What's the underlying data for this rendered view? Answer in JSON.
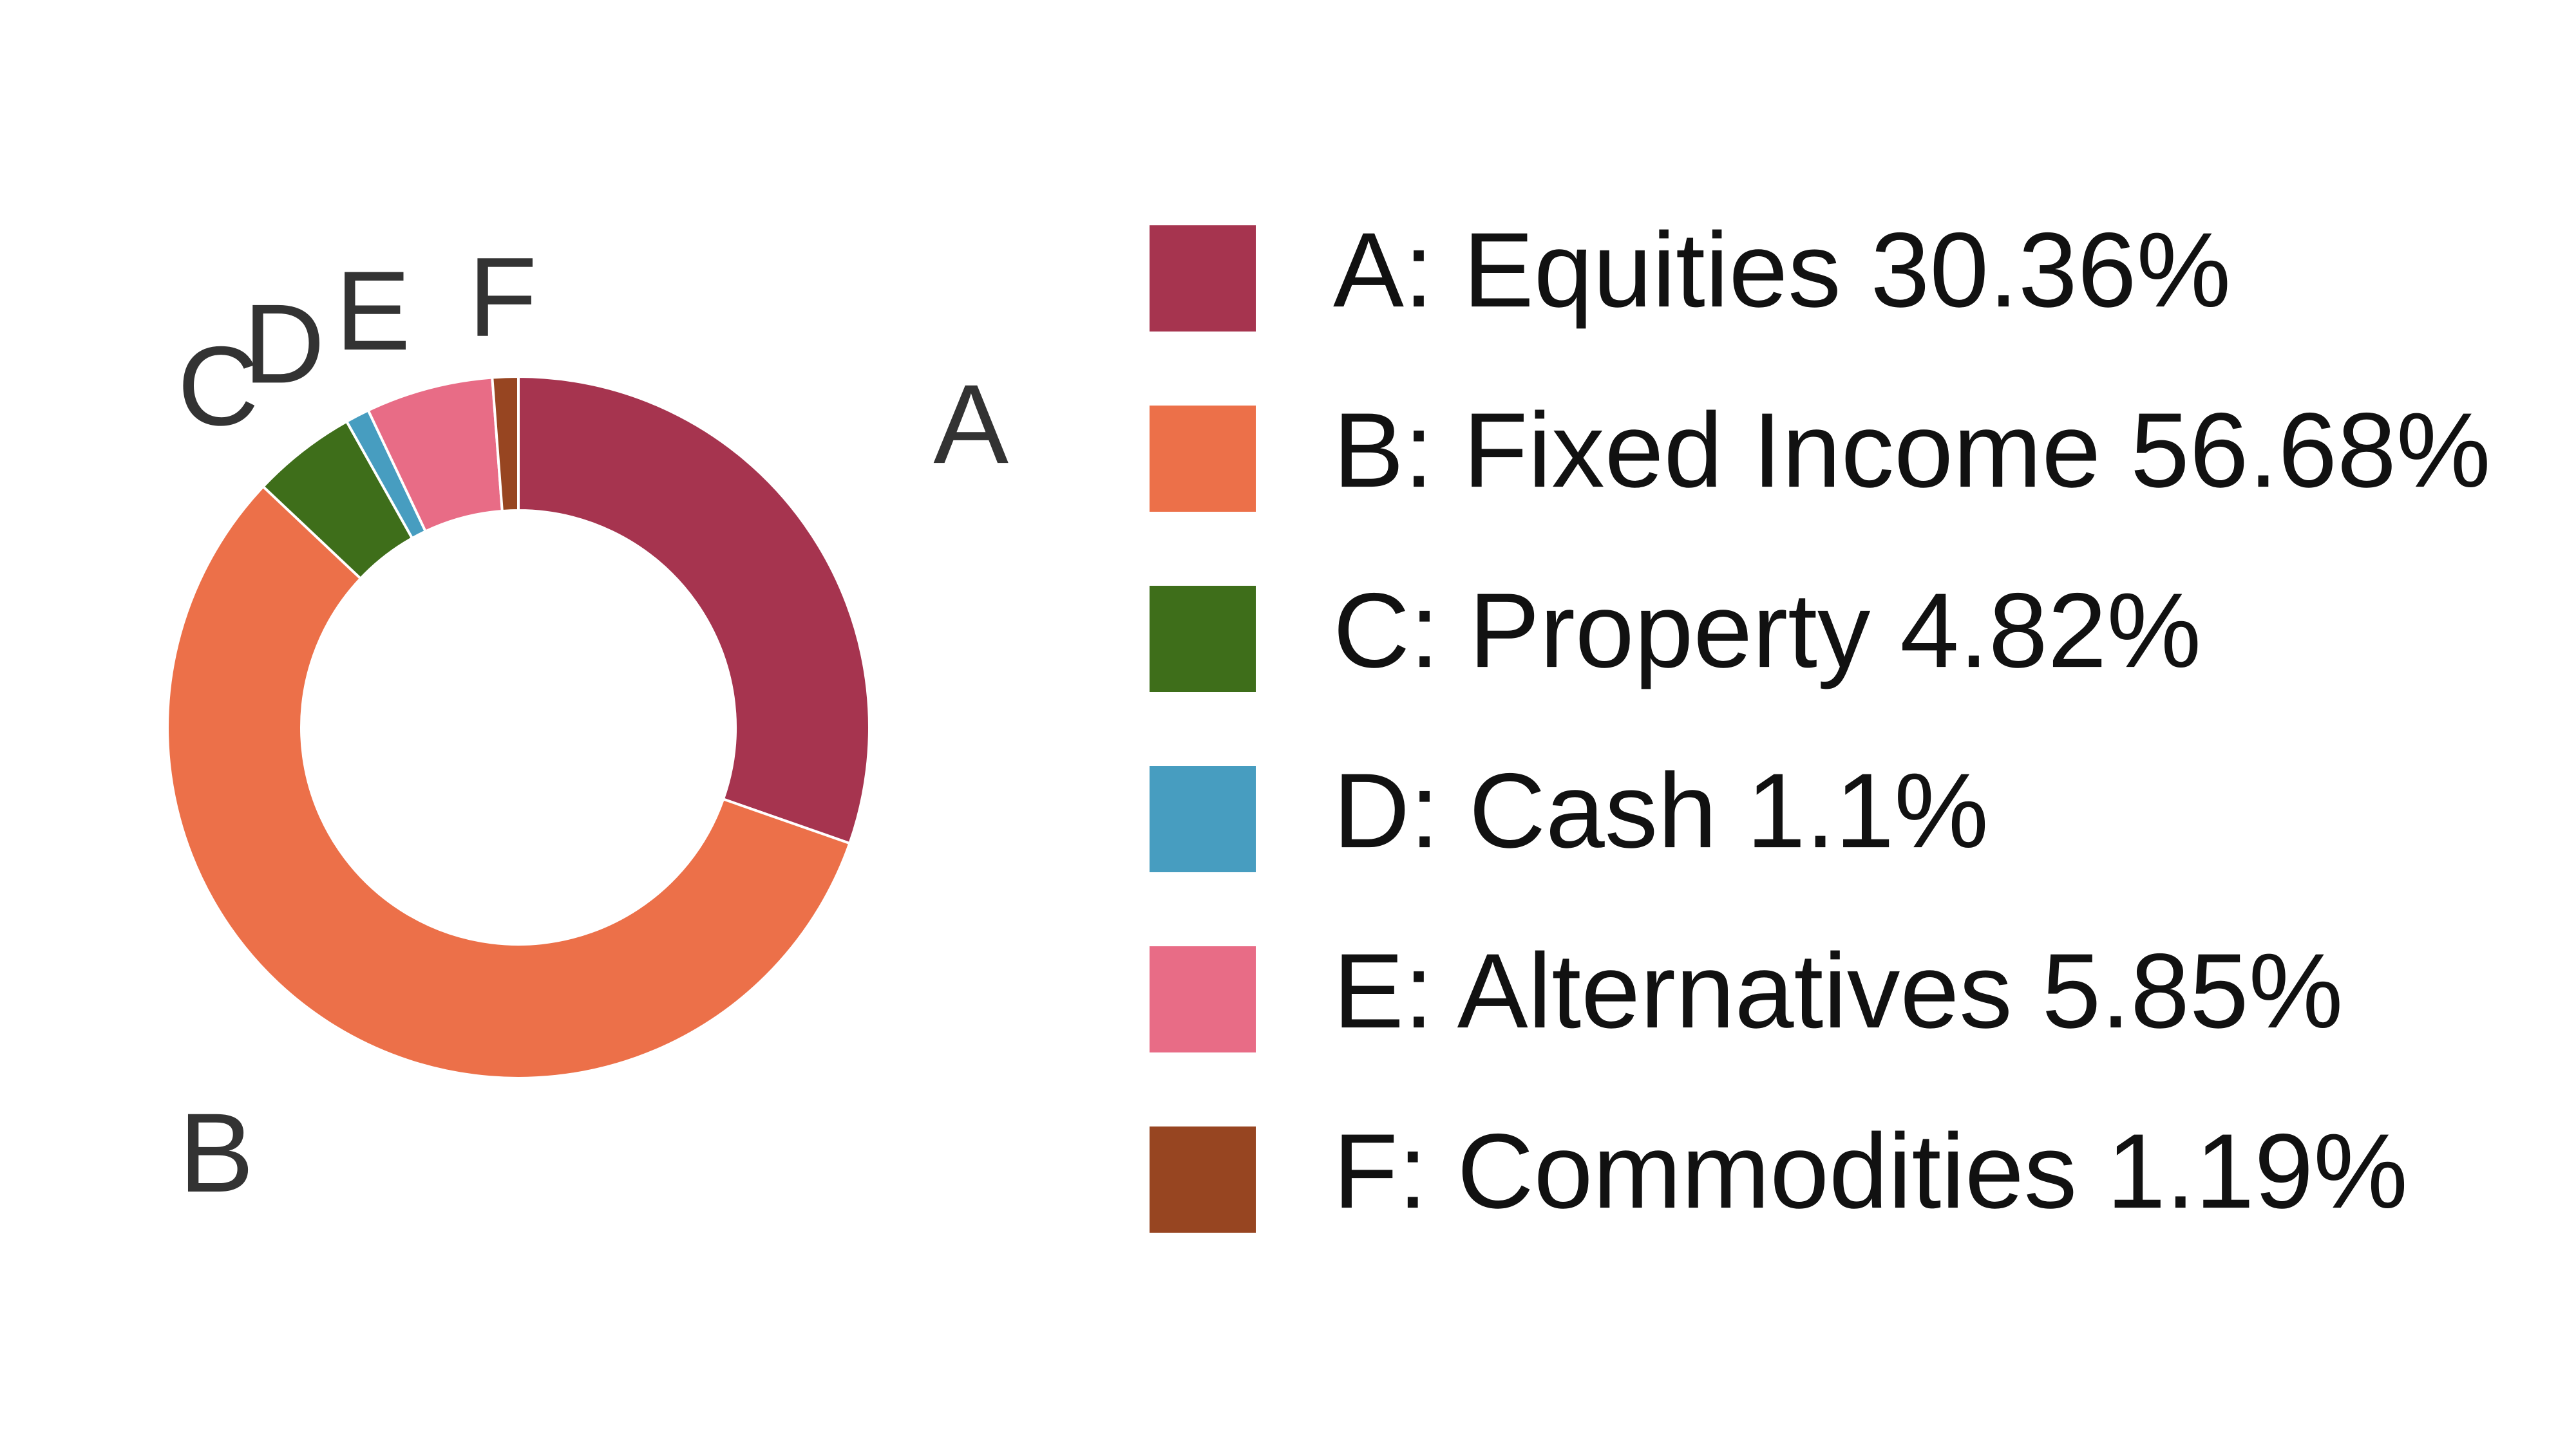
{
  "chart_data": {
    "type": "pie",
    "variant": "donut",
    "categories": [
      "A",
      "B",
      "C",
      "D",
      "E",
      "F"
    ],
    "slices": [
      {
        "letter": "A",
        "name": "Equities",
        "value": 30.36,
        "percent_label": "30.36%",
        "legend_label": "A: Equities 30.36%",
        "color": "#A6344F"
      },
      {
        "letter": "B",
        "name": "Fixed Income",
        "value": 56.68,
        "percent_label": "56.68%",
        "legend_label": "B: Fixed Income 56.68%",
        "color": "#EC7049"
      },
      {
        "letter": "C",
        "name": "Property",
        "value": 4.82,
        "percent_label": "4.82%",
        "legend_label": "C: Property 4.82%",
        "color": "#3E6E1A"
      },
      {
        "letter": "D",
        "name": "Cash",
        "value": 1.1,
        "percent_label": "1.1%",
        "legend_label": "D: Cash 1.1%",
        "color": "#479DC0"
      },
      {
        "letter": "E",
        "name": "Alternatives",
        "value": 5.85,
        "percent_label": "5.85%",
        "legend_label": "E: Alternatives 5.85%",
        "color": "#E86C86"
      },
      {
        "letter": "F",
        "name": "Commodities",
        "value": 1.19,
        "percent_label": "1.19%",
        "legend_label": "F: Commodities 1.19%",
        "color": "#974521"
      }
    ],
    "start_angle": "12 o'clock",
    "direction": "clockwise",
    "legend_position": "right",
    "title": "",
    "xlabel": "",
    "ylabel": ""
  }
}
